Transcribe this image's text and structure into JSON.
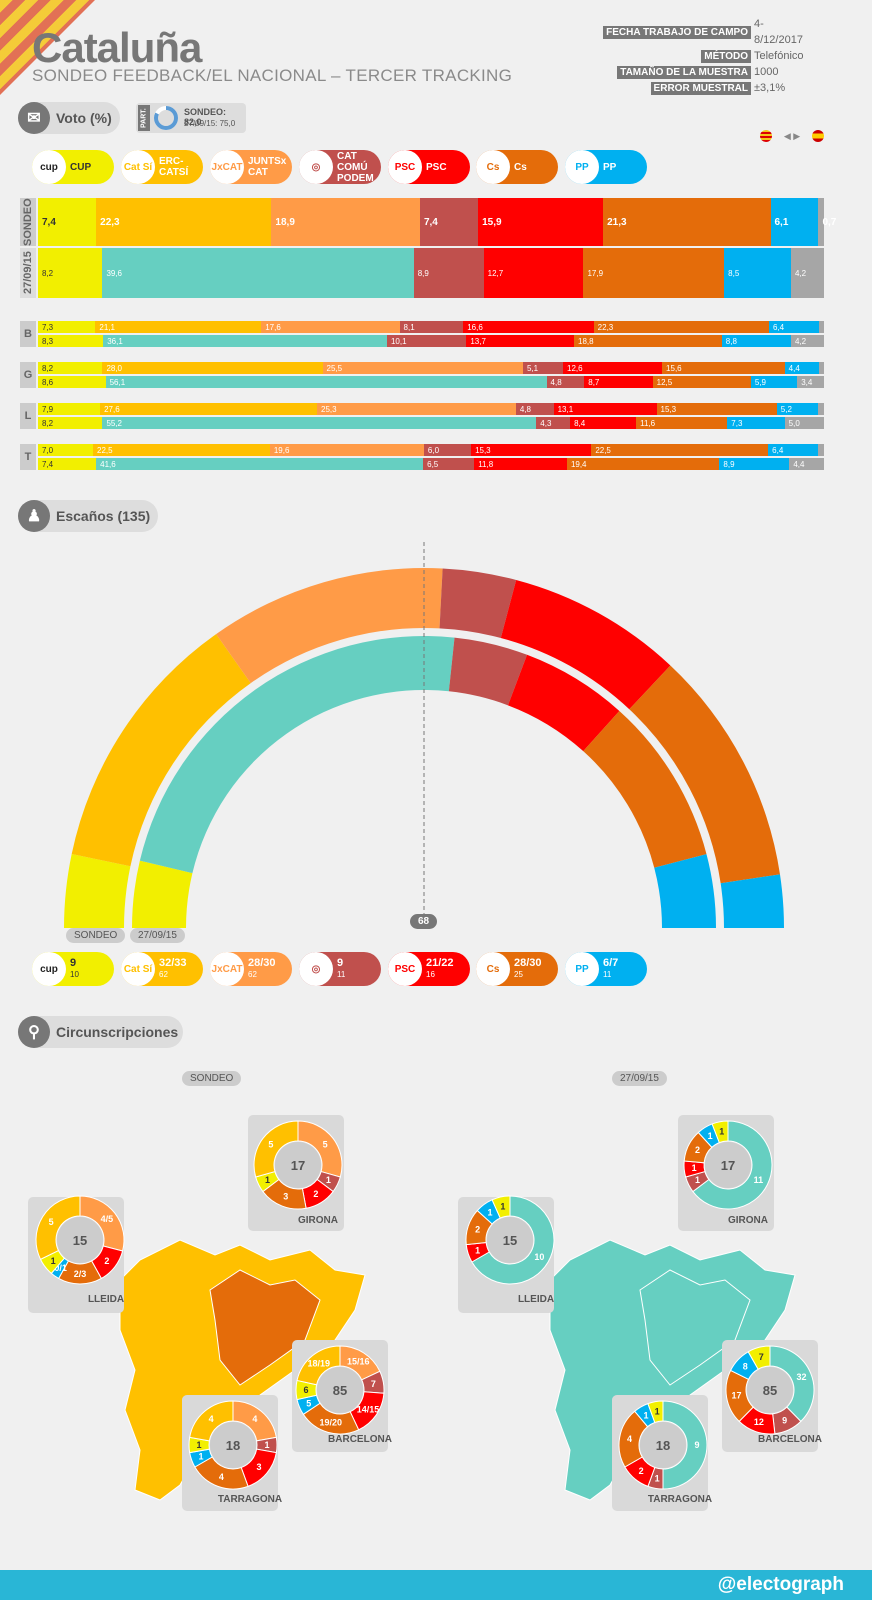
{
  "header": {
    "title": "Cataluña",
    "subtitle": "SONDEO FEEDBACK/EL NACIONAL – TERCER TRACKING"
  },
  "meta": [
    {
      "k": "FECHA TRABAJO DE CAMPO",
      "v": "4-8/12/2017"
    },
    {
      "k": "MÉTODO",
      "v": "Telefónico"
    },
    {
      "k": "TAMAÑO DE LA MUESTRA",
      "v": "1000"
    },
    {
      "k": "ERROR MUESTRAL",
      "v": "±3,1%"
    }
  ],
  "voto": {
    "label": "Voto (%)",
    "part_label": "PART.",
    "part_sondeo": "SONDEO: 82,0",
    "part_prev": "27/09/15: 75,0"
  },
  "colors": {
    "cup": "#f2ef00",
    "erc": "#ffc000",
    "junts": "#ff9b47",
    "jxsi": "#66cfc1",
    "catcomu": "#c0504d",
    "psc": "#ff0000",
    "cs": "#e46c0a",
    "pp": "#00b0f0",
    "otros": "#a6a6a6"
  },
  "parties": [
    {
      "key": "cup",
      "name": "CUP",
      "logo": "cup"
    },
    {
      "key": "erc",
      "name": "ERC-CATSÍ",
      "logo": "Cat Sí"
    },
    {
      "key": "junts",
      "name": "JUNTSx CAT",
      "logo": "JxCAT"
    },
    {
      "key": "catcomu",
      "name": "CAT COMÚ PODEM",
      "logo": "◎"
    },
    {
      "key": "psc",
      "name": "PSC",
      "logo": "PSC"
    },
    {
      "key": "cs",
      "name": "Cs",
      "logo": "Cs"
    },
    {
      "key": "pp",
      "name": "PP",
      "logo": "PP"
    }
  ],
  "chart_data": [
    {
      "type": "bar",
      "title": "Voto (%)",
      "rows": [
        {
          "label": "SONDEO",
          "segments": [
            {
              "p": "cup",
              "v": 7.4,
              "t": "7,4"
            },
            {
              "p": "erc",
              "v": 22.3,
              "t": "22,3"
            },
            {
              "p": "junts",
              "v": 18.9,
              "t": "18,9"
            },
            {
              "p": "catcomu",
              "v": 7.4,
              "t": "7,4"
            },
            {
              "p": "psc",
              "v": 15.9,
              "t": "15,9"
            },
            {
              "p": "cs",
              "v": 21.3,
              "t": "21,3"
            },
            {
              "p": "pp",
              "v": 6.1,
              "t": "6,1"
            },
            {
              "p": "otros",
              "v": 0.7,
              "t": "0,7"
            }
          ]
        },
        {
          "label": "27/09/15",
          "segments": [
            {
              "p": "cup",
              "v": 8.2,
              "t": "8,2"
            },
            {
              "p": "jxsi",
              "v": 39.6,
              "t": "39,6"
            },
            {
              "p": "catcomu",
              "v": 8.9,
              "t": "8,9"
            },
            {
              "p": "psc",
              "v": 12.7,
              "t": "12,7"
            },
            {
              "p": "cs",
              "v": 17.9,
              "t": "17,9"
            },
            {
              "p": "pp",
              "v": 8.5,
              "t": "8,5"
            },
            {
              "p": "otros",
              "v": 4.2,
              "t": "4,2"
            }
          ]
        }
      ]
    },
    {
      "type": "bar",
      "title": "Voto por provincia",
      "provinces": [
        {
          "label": "B",
          "sondeo": [
            {
              "p": "cup",
              "v": 7.3,
              "t": "7,3"
            },
            {
              "p": "erc",
              "v": 21.1,
              "t": "21,1"
            },
            {
              "p": "junts",
              "v": 17.6,
              "t": "17,6"
            },
            {
              "p": "catcomu",
              "v": 8.1,
              "t": "8,1"
            },
            {
              "p": "psc",
              "v": 16.6,
              "t": "16,6"
            },
            {
              "p": "cs",
              "v": 22.3,
              "t": "22,3"
            },
            {
              "p": "pp",
              "v": 6.4,
              "t": "6,4"
            },
            {
              "p": "otros",
              "v": 0.6,
              "t": ""
            }
          ],
          "prev": [
            {
              "p": "cup",
              "v": 8.3,
              "t": "8,3"
            },
            {
              "p": "jxsi",
              "v": 36.1,
              "t": "36,1"
            },
            {
              "p": "catcomu",
              "v": 10.1,
              "t": "10,1"
            },
            {
              "p": "psc",
              "v": 13.7,
              "t": "13,7"
            },
            {
              "p": "cs",
              "v": 18.8,
              "t": "18,8"
            },
            {
              "p": "pp",
              "v": 8.8,
              "t": "8,8"
            },
            {
              "p": "otros",
              "v": 4.2,
              "t": "4,2"
            }
          ]
        },
        {
          "label": "G",
          "sondeo": [
            {
              "p": "cup",
              "v": 8.2,
              "t": "8,2"
            },
            {
              "p": "erc",
              "v": 28.0,
              "t": "28,0"
            },
            {
              "p": "junts",
              "v": 25.5,
              "t": "25,5"
            },
            {
              "p": "catcomu",
              "v": 5.1,
              "t": "5,1"
            },
            {
              "p": "psc",
              "v": 12.6,
              "t": "12,6"
            },
            {
              "p": "cs",
              "v": 15.6,
              "t": "15,6"
            },
            {
              "p": "pp",
              "v": 4.4,
              "t": "4,4"
            },
            {
              "p": "otros",
              "v": 0.6,
              "t": ""
            }
          ],
          "prev": [
            {
              "p": "cup",
              "v": 8.6,
              "t": "8,6"
            },
            {
              "p": "jxsi",
              "v": 56.1,
              "t": "56,1"
            },
            {
              "p": "catcomu",
              "v": 4.8,
              "t": "4,8"
            },
            {
              "p": "psc",
              "v": 8.7,
              "t": "8,7"
            },
            {
              "p": "cs",
              "v": 12.5,
              "t": "12,5"
            },
            {
              "p": "pp",
              "v": 5.9,
              "t": "5,9"
            },
            {
              "p": "otros",
              "v": 3.4,
              "t": "3,4"
            }
          ]
        },
        {
          "label": "L",
          "sondeo": [
            {
              "p": "cup",
              "v": 7.9,
              "t": "7,9"
            },
            {
              "p": "erc",
              "v": 27.6,
              "t": "27,6"
            },
            {
              "p": "junts",
              "v": 25.3,
              "t": "25,3"
            },
            {
              "p": "catcomu",
              "v": 4.8,
              "t": "4,8"
            },
            {
              "p": "psc",
              "v": 13.1,
              "t": "13,1"
            },
            {
              "p": "cs",
              "v": 15.3,
              "t": "15,3"
            },
            {
              "p": "pp",
              "v": 5.2,
              "t": "5,2"
            },
            {
              "p": "otros",
              "v": 0.8,
              "t": ""
            }
          ],
          "prev": [
            {
              "p": "cup",
              "v": 8.2,
              "t": "8,2"
            },
            {
              "p": "jxsi",
              "v": 55.2,
              "t": "55,2"
            },
            {
              "p": "catcomu",
              "v": 4.3,
              "t": "4,3"
            },
            {
              "p": "psc",
              "v": 8.4,
              "t": "8,4"
            },
            {
              "p": "cs",
              "v": 11.6,
              "t": "11,6"
            },
            {
              "p": "pp",
              "v": 7.3,
              "t": "7,3"
            },
            {
              "p": "otros",
              "v": 5.0,
              "t": "5,0"
            }
          ]
        },
        {
          "label": "T",
          "sondeo": [
            {
              "p": "cup",
              "v": 7.0,
              "t": "7,0"
            },
            {
              "p": "erc",
              "v": 22.5,
              "t": "22,5"
            },
            {
              "p": "junts",
              "v": 19.6,
              "t": "19,6"
            },
            {
              "p": "catcomu",
              "v": 6.0,
              "t": "6,0"
            },
            {
              "p": "psc",
              "v": 15.3,
              "t": "15,3"
            },
            {
              "p": "cs",
              "v": 22.5,
              "t": "22,5"
            },
            {
              "p": "pp",
              "v": 6.4,
              "t": "6,4"
            },
            {
              "p": "otros",
              "v": 0.7,
              "t": ""
            }
          ],
          "prev": [
            {
              "p": "cup",
              "v": 7.4,
              "t": "7,4"
            },
            {
              "p": "jxsi",
              "v": 41.6,
              "t": "41,6"
            },
            {
              "p": "catcomu",
              "v": 6.5,
              "t": "6,5"
            },
            {
              "p": "psc",
              "v": 11.8,
              "t": "11,8"
            },
            {
              "p": "cs",
              "v": 19.4,
              "t": "19,4"
            },
            {
              "p": "pp",
              "v": 8.9,
              "t": "8,9"
            },
            {
              "p": "otros",
              "v": 4.4,
              "t": "4,4"
            }
          ]
        }
      ]
    },
    {
      "type": "pie",
      "title": "Escaños (135)",
      "majority": "68",
      "sondeo_label": "SONDEO",
      "prev_label": "27/09/15",
      "sondeo": [
        {
          "p": "cup",
          "v": 9
        },
        {
          "p": "erc",
          "v": 32.5
        },
        {
          "p": "junts",
          "v": 29
        },
        {
          "p": "catcomu",
          "v": 9
        },
        {
          "p": "psc",
          "v": 21.5
        },
        {
          "p": "cs",
          "v": 29
        },
        {
          "p": "pp",
          "v": 6.5
        }
      ],
      "prev": [
        {
          "p": "cup",
          "v": 10
        },
        {
          "p": "jxsi",
          "v": 62
        },
        {
          "p": "catcomu",
          "v": 11
        },
        {
          "p": "psc",
          "v": 16
        },
        {
          "p": "cs",
          "v": 25
        },
        {
          "p": "pp",
          "v": 11
        }
      ],
      "seats": [
        {
          "p": "cup",
          "now": "9",
          "prev": "10"
        },
        {
          "p": "erc",
          "now": "32/33",
          "prev": "62"
        },
        {
          "p": "junts",
          "now": "28/30",
          "prev": "62"
        },
        {
          "p": "catcomu",
          "now": "9",
          "prev": "11"
        },
        {
          "p": "psc",
          "now": "21/22",
          "prev": "16"
        },
        {
          "p": "cs",
          "now": "28/30",
          "prev": "25"
        },
        {
          "p": "pp",
          "now": "6/7",
          "prev": "11"
        }
      ]
    },
    {
      "type": "pie",
      "title": "Circunscripciones",
      "sondeo_label": "SONDEO",
      "prev_label": "27/09/15",
      "sondeo": [
        {
          "name": "GIRONA",
          "total": "17",
          "slices": [
            {
              "p": "junts",
              "v": 5,
              "t": "5"
            },
            {
              "p": "catcomu",
              "v": 1,
              "t": "1"
            },
            {
              "p": "psc",
              "v": 2,
              "t": "2"
            },
            {
              "p": "cs",
              "v": 3,
              "t": "3"
            },
            {
              "p": "cup",
              "v": 1,
              "t": "1"
            },
            {
              "p": "erc",
              "v": 5,
              "t": "5"
            }
          ]
        },
        {
          "name": "LLEIDA",
          "total": "15",
          "slices": [
            {
              "p": "junts",
              "v": 4.5,
              "t": "4/5"
            },
            {
              "p": "psc",
              "v": 2,
              "t": "2"
            },
            {
              "p": "cs",
              "v": 2.5,
              "t": "2/3"
            },
            {
              "p": "pp",
              "v": 0.5,
              "t": "0/1"
            },
            {
              "p": "cup",
              "v": 1,
              "t": "1"
            },
            {
              "p": "erc",
              "v": 5,
              "t": "5"
            }
          ]
        },
        {
          "name": "BARCELONA",
          "total": "85",
          "slices": [
            {
              "p": "junts",
              "v": 15.5,
              "t": "15/16"
            },
            {
              "p": "catcomu",
              "v": 7,
              "t": "7"
            },
            {
              "p": "psc",
              "v": 14.5,
              "t": "14/15"
            },
            {
              "p": "cs",
              "v": 19.5,
              "t": "19/20"
            },
            {
              "p": "pp",
              "v": 5,
              "t": "5"
            },
            {
              "p": "cup",
              "v": 6,
              "t": "6"
            },
            {
              "p": "erc",
              "v": 18.5,
              "t": "18/19"
            }
          ]
        },
        {
          "name": "TARRAGONA",
          "total": "18",
          "slices": [
            {
              "p": "junts",
              "v": 4,
              "t": "4"
            },
            {
              "p": "catcomu",
              "v": 1,
              "t": "1"
            },
            {
              "p": "psc",
              "v": 3,
              "t": "3"
            },
            {
              "p": "cs",
              "v": 4,
              "t": "4"
            },
            {
              "p": "pp",
              "v": 1,
              "t": "1"
            },
            {
              "p": "cup",
              "v": 1,
              "t": "1"
            },
            {
              "p": "erc",
              "v": 4,
              "t": "4"
            }
          ]
        }
      ],
      "prev": [
        {
          "name": "GIRONA",
          "total": "17",
          "slices": [
            {
              "p": "jxsi",
              "v": 11,
              "t": "11"
            },
            {
              "p": "catcomu",
              "v": 1,
              "t": "1"
            },
            {
              "p": "psc",
              "v": 1,
              "t": "1"
            },
            {
              "p": "cs",
              "v": 2,
              "t": "2"
            },
            {
              "p": "pp",
              "v": 1,
              "t": "1"
            },
            {
              "p": "cup",
              "v": 1,
              "t": "1"
            }
          ]
        },
        {
          "name": "LLEIDA",
          "total": "15",
          "slices": [
            {
              "p": "jxsi",
              "v": 10,
              "t": "10"
            },
            {
              "p": "psc",
              "v": 1,
              "t": "1"
            },
            {
              "p": "cs",
              "v": 2,
              "t": "2"
            },
            {
              "p": "pp",
              "v": 1,
              "t": "1"
            },
            {
              "p": "cup",
              "v": 1,
              "t": "1"
            }
          ]
        },
        {
          "name": "BARCELONA",
          "total": "85",
          "slices": [
            {
              "p": "jxsi",
              "v": 32,
              "t": "32"
            },
            {
              "p": "catcomu",
              "v": 9,
              "t": "9"
            },
            {
              "p": "psc",
              "v": 12,
              "t": "12"
            },
            {
              "p": "cs",
              "v": 17,
              "t": "17"
            },
            {
              "p": "pp",
              "v": 8,
              "t": "8"
            },
            {
              "p": "cup",
              "v": 7,
              "t": "7"
            }
          ]
        },
        {
          "name": "TARRAGONA",
          "total": "18",
          "slices": [
            {
              "p": "jxsi",
              "v": 9,
              "t": "9"
            },
            {
              "p": "catcomu",
              "v": 1,
              "t": "1"
            },
            {
              "p": "psc",
              "v": 2,
              "t": "2"
            },
            {
              "p": "cs",
              "v": 4,
              "t": "4"
            },
            {
              "p": "pp",
              "v": 1,
              "t": "1"
            },
            {
              "p": "cup",
              "v": 1,
              "t": "1"
            }
          ]
        }
      ]
    }
  ],
  "sections": {
    "escanos": "Escaños (135)",
    "circ": "Circunscripciones"
  },
  "footer": "@electograph"
}
